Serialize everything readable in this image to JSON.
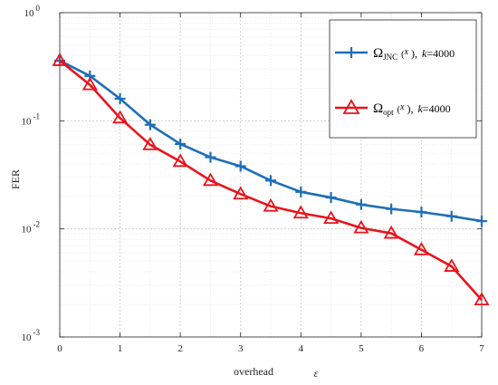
{
  "chart_data": {
    "type": "line",
    "xlabel": "overhead",
    "xlabel_symbol": "ε",
    "ylabel": "FER",
    "y_scale": "log",
    "xlim": [
      0,
      7
    ],
    "ylim": [
      0.001,
      1
    ],
    "grid": true,
    "legend_position": "top-right",
    "x_ticks": [
      "0",
      "1",
      "2",
      "3",
      "4",
      "5",
      "6",
      "7"
    ],
    "y_ticks": [
      {
        "value": 1,
        "base": "10",
        "exp": "0"
      },
      {
        "value": 0.1,
        "base": "10",
        "exp": "-1"
      },
      {
        "value": 0.01,
        "base": "10",
        "exp": "-2"
      },
      {
        "value": 0.001,
        "base": "10",
        "exp": "-3"
      }
    ],
    "series": [
      {
        "name": "Ω_JNC(x), k=4000",
        "legend": {
          "symbol": "Ω",
          "sub": "JNC",
          "arg": "(",
          "argvar": "x",
          "argclose": "),",
          "kvar": "k",
          "kval": "=4000"
        },
        "color": "#1f6fb8",
        "marker": "plus",
        "x": [
          0,
          0.5,
          1,
          1.5,
          2,
          2.5,
          3,
          3.5,
          4,
          4.5,
          5,
          5.5,
          6,
          6.5,
          7
        ],
        "y": [
          0.36,
          0.26,
          0.16,
          0.092,
          0.061,
          0.046,
          0.038,
          0.028,
          0.022,
          0.0195,
          0.0168,
          0.0153,
          0.0143,
          0.0131,
          0.0118
        ]
      },
      {
        "name": "Ω_opt(x), k=4000",
        "legend": {
          "symbol": "Ω",
          "sub": "opt",
          "arg": "(",
          "argvar": "x",
          "argclose": "),",
          "kvar": "k",
          "kval": "=4000"
        },
        "color": "#e8141c",
        "marker": "triangle",
        "x": [
          0,
          0.5,
          1,
          1.5,
          2,
          2.5,
          3,
          3.5,
          4,
          4.5,
          5,
          5.5,
          6,
          6.5,
          7
        ],
        "y": [
          0.36,
          0.215,
          0.106,
          0.06,
          0.042,
          0.028,
          0.021,
          0.0162,
          0.014,
          0.0125,
          0.0102,
          0.0091,
          0.0064,
          0.0045,
          0.0022
        ]
      }
    ]
  }
}
